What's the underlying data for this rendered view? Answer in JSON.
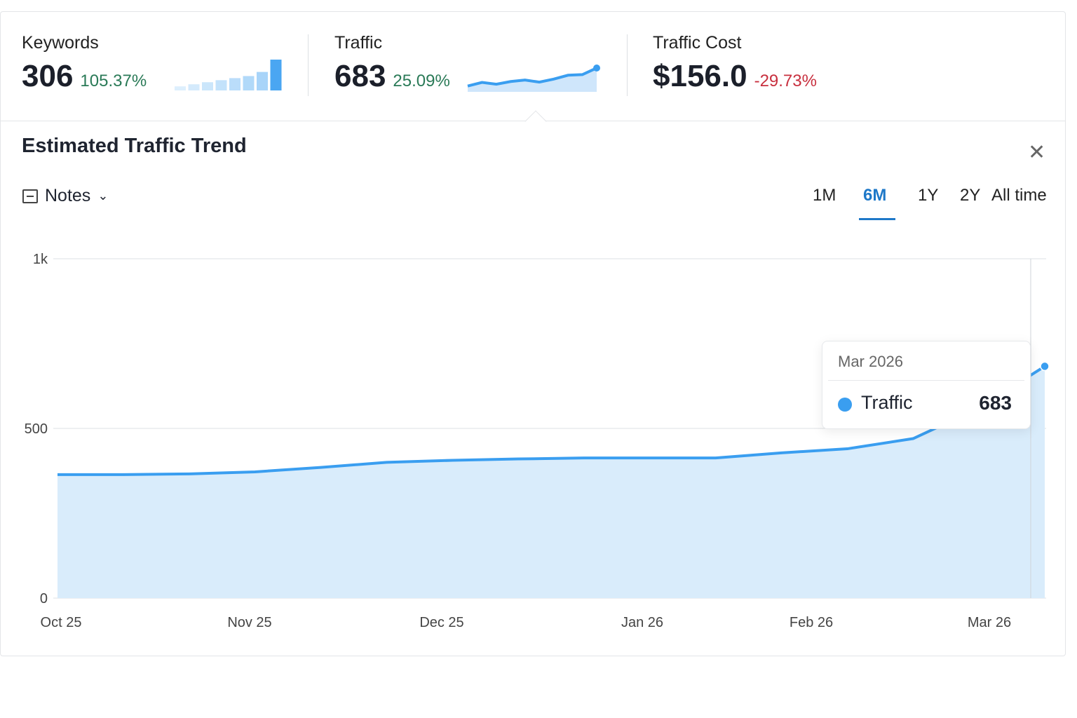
{
  "metrics": [
    {
      "label": "Keywords",
      "value": "306",
      "change": "105.37%",
      "trend": "up",
      "spark_type": "bar",
      "spark": [
        2,
        3,
        4,
        5,
        6,
        7,
        9,
        15
      ]
    },
    {
      "label": "Traffic",
      "value": "683",
      "change": "25.09%",
      "trend": "up",
      "spark_type": "line",
      "spark": [
        540,
        552,
        546,
        555,
        560,
        553,
        563,
        576,
        578,
        600
      ]
    },
    {
      "label": "Traffic Cost",
      "value": "$156.0",
      "change": "-29.73%",
      "trend": "down"
    }
  ],
  "panel": {
    "title": "Estimated Traffic Trend",
    "close_icon": "close-icon",
    "notes_label": "Notes",
    "notes_icon": "notes-icon"
  },
  "ranges": [
    {
      "label": "1M"
    },
    {
      "label": "6M",
      "active": true
    },
    {
      "label": "1Y"
    },
    {
      "label": "2Y"
    },
    {
      "label": "All time"
    }
  ],
  "tooltip": {
    "date": "Mar 2026",
    "series": "Traffic",
    "value": "683"
  },
  "colors": {
    "accent": "#1e78c8",
    "line": "#3a9ef0",
    "fill": "#d9ecfb",
    "up": "#2a7a57",
    "down": "#c8303f"
  },
  "chart_data": {
    "type": "area",
    "ylim": [
      0,
      1000
    ],
    "yticks": [
      {
        "v": 0,
        "label": "0"
      },
      {
        "v": 500,
        "label": "500"
      },
      {
        "v": 1000,
        "label": "1k"
      }
    ],
    "xticks": [
      "Oct 25",
      "Nov 25",
      "Dec 25",
      "Jan 26",
      "Feb 26",
      "Mar 26"
    ],
    "series": [
      {
        "name": "Traffic",
        "values": [
          364,
          364,
          366,
          372,
          385,
          400,
          406,
          410,
          413,
          413,
          413,
          428,
          440,
          470,
          560,
          683
        ]
      }
    ],
    "grid": true
  }
}
